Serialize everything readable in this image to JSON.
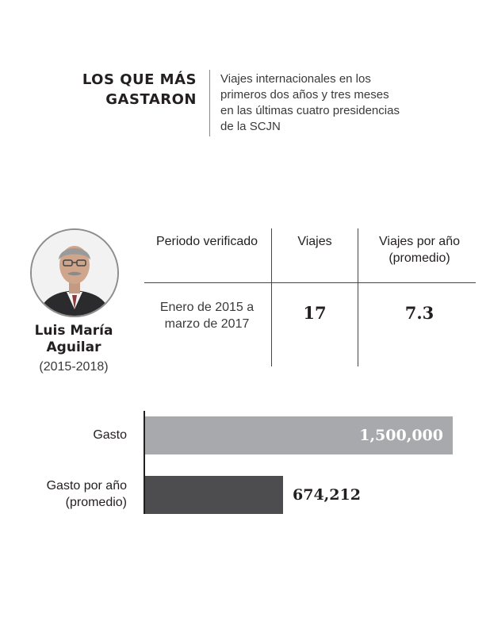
{
  "header": {
    "title_lines": [
      "LOS QUE MÁS",
      "GASTARON"
    ],
    "subtitle": "Viajes internacionales en los primeros dos años y tres meses en las últimas cuatro presidencias de la SCJN"
  },
  "person": {
    "name_lines": [
      "Luis María",
      "Aguilar"
    ],
    "period": "(2015-2018)"
  },
  "table": {
    "headers": [
      "Periodo verificado",
      "Viajes",
      "Viajes por año (promedio)"
    ],
    "row": {
      "periodo": "Enero de 2015 a marzo de 2017",
      "viajes": "17",
      "viajes_por_anio": "7.3"
    }
  },
  "chart_data": {
    "type": "bar",
    "orientation": "horizontal",
    "categories": [
      "Gasto",
      "Gasto por año (promedio)"
    ],
    "values": [
      1500000,
      674212
    ],
    "value_labels": [
      "1,500,000",
      "674,212"
    ],
    "colors": [
      "#a7a9ac",
      "#4d4d4f"
    ],
    "xlim": [
      0,
      1500000
    ]
  },
  "colors": {
    "text": "#231f20",
    "bar_light": "#a7a9ac",
    "bar_dark": "#4d4d4f"
  }
}
